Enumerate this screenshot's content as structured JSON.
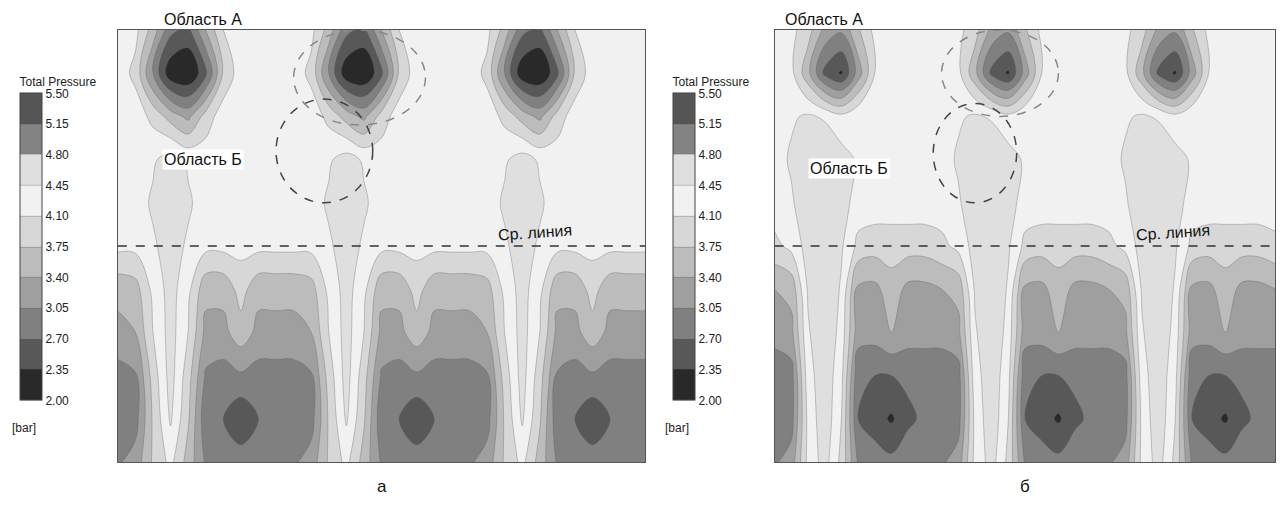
{
  "chart_data": [
    {
      "type": "contour",
      "title": "а",
      "tick_labels": false,
      "annotations": [
        "Область А",
        "Область Б",
        "Ср. линия"
      ],
      "xlim": [
        0,
        3
      ],
      "ylim": [
        0,
        1
      ],
      "x": [
        0,
        0.1,
        0.2,
        0.3,
        0.4,
        0.5,
        0.6,
        0.7,
        0.8,
        0.9,
        1.0,
        1.1,
        1.2,
        1.3,
        1.4,
        1.5,
        1.6,
        1.7,
        1.8,
        1.9,
        2.0,
        2.1,
        2.2,
        2.3,
        2.4,
        2.5,
        2.6,
        2.7,
        2.8,
        2.9,
        3.0
      ],
      "y": [
        0,
        0.1,
        0.2,
        0.3,
        0.4,
        0.5,
        0.6,
        0.7,
        0.8,
        0.9,
        1.0
      ],
      "z": [
        [
          3.0,
          3.2,
          3.8,
          4.2,
          3.6,
          3.0,
          3.0,
          2.9,
          3.0,
          3.0,
          3.0,
          3.2,
          3.8,
          4.2,
          3.6,
          3.0,
          3.0,
          2.9,
          3.0,
          3.0,
          3.0,
          3.2,
          3.8,
          4.2,
          3.6,
          3.0,
          3.0,
          2.9,
          3.0,
          3.0,
          3.0
        ],
        [
          2.8,
          2.9,
          3.8,
          4.5,
          3.8,
          2.8,
          2.7,
          2.4,
          2.7,
          2.8,
          2.8,
          2.9,
          3.8,
          4.5,
          3.8,
          2.8,
          2.7,
          2.4,
          2.7,
          2.8,
          2.8,
          2.9,
          3.8,
          4.5,
          3.8,
          2.8,
          2.7,
          2.4,
          2.7,
          2.8,
          2.8
        ],
        [
          2.9,
          3.0,
          3.9,
          4.6,
          3.9,
          3.0,
          2.9,
          3.0,
          2.9,
          2.9,
          2.9,
          3.0,
          3.9,
          4.6,
          3.9,
          3.0,
          2.9,
          3.0,
          2.9,
          2.9,
          2.9,
          3.0,
          3.9,
          4.6,
          3.9,
          3.0,
          2.9,
          3.0,
          2.9,
          2.9,
          2.9
        ],
        [
          3.3,
          3.4,
          4.1,
          4.6,
          4.1,
          3.3,
          3.3,
          3.6,
          3.3,
          3.3,
          3.3,
          3.4,
          4.1,
          4.6,
          4.1,
          3.3,
          3.3,
          3.6,
          3.3,
          3.3,
          3.3,
          3.4,
          4.1,
          4.6,
          4.1,
          3.3,
          3.3,
          3.6,
          3.3,
          3.3,
          3.3
        ],
        [
          3.5,
          3.6,
          4.2,
          4.6,
          4.2,
          3.5,
          3.5,
          3.9,
          3.5,
          3.5,
          3.5,
          3.6,
          4.2,
          4.6,
          4.2,
          3.5,
          3.5,
          3.9,
          3.5,
          3.5,
          3.5,
          3.6,
          4.2,
          4.6,
          4.2,
          3.5,
          3.5,
          3.9,
          3.5,
          3.5,
          3.5
        ],
        [
          4.2,
          4.2,
          4.4,
          4.6,
          4.4,
          4.2,
          4.2,
          4.2,
          4.2,
          4.2,
          4.2,
          4.2,
          4.4,
          4.6,
          4.4,
          4.2,
          4.2,
          4.2,
          4.2,
          4.2,
          4.2,
          4.2,
          4.4,
          4.6,
          4.4,
          4.2,
          4.2,
          4.2,
          4.2,
          4.2,
          4.2
        ],
        [
          4.3,
          4.3,
          4.5,
          4.7,
          4.5,
          4.3,
          4.3,
          4.3,
          4.3,
          4.3,
          4.3,
          4.3,
          4.5,
          4.7,
          4.5,
          4.3,
          4.3,
          4.3,
          4.3,
          4.3,
          4.3,
          4.3,
          4.5,
          4.7,
          4.5,
          4.3,
          4.3,
          4.3,
          4.3,
          4.3,
          4.3
        ],
        [
          4.3,
          4.3,
          4.4,
          4.6,
          4.4,
          4.3,
          4.3,
          4.3,
          4.3,
          4.3,
          4.3,
          4.3,
          4.4,
          4.6,
          4.4,
          4.3,
          4.3,
          4.3,
          4.3,
          4.3,
          4.3,
          4.3,
          4.4,
          4.6,
          4.4,
          4.3,
          4.3,
          4.3,
          4.3,
          4.3,
          4.3
        ],
        [
          4.3,
          4.3,
          4.0,
          3.6,
          3.3,
          3.9,
          4.3,
          4.3,
          4.3,
          4.3,
          4.3,
          4.3,
          4.0,
          3.6,
          3.3,
          3.9,
          4.3,
          4.3,
          4.3,
          4.3,
          4.3,
          4.3,
          4.0,
          3.6,
          3.3,
          3.9,
          4.3,
          4.3,
          4.3,
          4.3,
          4.3
        ],
        [
          4.3,
          4.0,
          3.0,
          2.1,
          2.0,
          2.6,
          3.8,
          4.3,
          4.3,
          4.3,
          4.3,
          4.0,
          3.0,
          2.1,
          2.0,
          2.6,
          3.8,
          4.3,
          4.3,
          4.3,
          4.3,
          4.0,
          3.0,
          2.1,
          2.0,
          2.6,
          3.8,
          4.3,
          4.3,
          4.3,
          4.3
        ],
        [
          4.3,
          4.2,
          3.6,
          2.8,
          2.6,
          3.4,
          4.1,
          4.3,
          4.3,
          4.3,
          4.3,
          4.2,
          3.6,
          2.8,
          2.6,
          3.4,
          4.1,
          4.3,
          4.3,
          4.3,
          4.3,
          4.2,
          3.6,
          2.8,
          2.6,
          3.4,
          4.1,
          4.3,
          4.3,
          4.3,
          4.3
        ]
      ],
      "colorbar": {
        "title": "Total Pressure",
        "unit": "[bar]",
        "range": [
          2,
          5.5
        ],
        "ticks": [
          {
            "value": 2,
            "label": "2.00"
          },
          {
            "value": 2.35,
            "label": "2.35"
          },
          {
            "value": 2.7,
            "label": "2.70"
          },
          {
            "value": 3.05,
            "label": "3.05"
          },
          {
            "value": 3.4,
            "label": "3.40"
          },
          {
            "value": 3.75,
            "label": "3.75"
          },
          {
            "value": 4.1,
            "label": "4.10"
          },
          {
            "value": 4.45,
            "label": "4.45"
          },
          {
            "value": 4.8,
            "label": "4.80"
          },
          {
            "value": 5.15,
            "label": "5.15"
          },
          {
            "value": 5.5,
            "label": "5.50"
          }
        ]
      }
    },
    {
      "type": "contour",
      "title": "б",
      "tick_labels": false,
      "annotations": [
        "Область А",
        "Область Б",
        "Ср. линия"
      ],
      "xlim": [
        0,
        3
      ],
      "ylim": [
        0,
        1
      ],
      "x": [
        0,
        0.1,
        0.2,
        0.3,
        0.4,
        0.5,
        0.6,
        0.7,
        0.8,
        0.9,
        1.0,
        1.1,
        1.2,
        1.3,
        1.4,
        1.5,
        1.6,
        1.7,
        1.8,
        1.9,
        2.0,
        2.1,
        2.2,
        2.3,
        2.4,
        2.5,
        2.6,
        2.7,
        2.8,
        2.9,
        3.0
      ],
      "y": [
        0,
        0.1,
        0.2,
        0.3,
        0.4,
        0.5,
        0.6,
        0.7,
        0.8,
        0.9,
        1.0
      ],
      "z": [
        [
          3.0,
          3.2,
          4.2,
          4.6,
          4.0,
          3.0,
          2.9,
          2.8,
          3.0,
          3.0,
          3.0,
          3.2,
          4.2,
          4.6,
          4.0,
          3.0,
          2.9,
          2.8,
          3.0,
          3.0,
          3.0,
          3.2,
          4.2,
          4.6,
          4.0,
          3.0,
          2.9,
          2.8,
          3.0,
          3.0,
          3.0
        ],
        [
          2.8,
          2.9,
          4.2,
          4.7,
          4.1,
          2.7,
          2.5,
          2.3,
          2.6,
          2.8,
          2.8,
          2.9,
          4.2,
          4.7,
          4.1,
          2.7,
          2.5,
          2.3,
          2.6,
          2.8,
          2.8,
          2.9,
          4.2,
          4.7,
          4.1,
          2.7,
          2.5,
          2.3,
          2.6,
          2.8,
          2.8
        ],
        [
          2.8,
          2.9,
          4.3,
          4.7,
          4.2,
          2.8,
          2.7,
          2.7,
          2.8,
          2.8,
          2.8,
          2.9,
          4.3,
          4.7,
          4.2,
          2.8,
          2.7,
          2.7,
          2.8,
          2.8,
          2.8,
          2.9,
          4.3,
          4.7,
          4.2,
          2.8,
          2.7,
          2.7,
          2.8,
          2.8,
          2.8
        ],
        [
          3.2,
          3.3,
          4.4,
          4.8,
          4.3,
          3.2,
          3.2,
          3.4,
          3.2,
          3.2,
          3.2,
          3.3,
          4.4,
          4.8,
          4.3,
          3.2,
          3.2,
          3.4,
          3.2,
          3.2,
          3.2,
          3.3,
          4.4,
          4.8,
          4.3,
          3.2,
          3.2,
          3.4,
          3.2,
          3.2,
          3.2
        ],
        [
          3.4,
          3.5,
          4.5,
          4.8,
          4.4,
          3.3,
          3.3,
          3.6,
          3.3,
          3.3,
          3.4,
          3.5,
          4.5,
          4.8,
          4.4,
          3.3,
          3.3,
          3.6,
          3.3,
          3.3,
          3.4,
          3.5,
          4.5,
          4.8,
          4.4,
          3.3,
          3.3,
          3.6,
          3.3,
          3.3,
          3.4
        ],
        [
          4.0,
          4.2,
          4.6,
          4.8,
          4.5,
          4.0,
          3.9,
          3.9,
          3.9,
          3.9,
          4.0,
          4.2,
          4.6,
          4.8,
          4.5,
          4.0,
          3.9,
          3.9,
          3.9,
          3.9,
          4.0,
          4.2,
          4.6,
          4.8,
          4.5,
          4.0,
          3.9,
          3.9,
          3.9,
          3.9,
          4.0
        ],
        [
          4.3,
          4.4,
          4.7,
          4.8,
          4.6,
          4.3,
          4.3,
          4.3,
          4.3,
          4.3,
          4.3,
          4.4,
          4.7,
          4.8,
          4.6,
          4.3,
          4.3,
          4.3,
          4.3,
          4.3,
          4.3,
          4.4,
          4.7,
          4.8,
          4.6,
          4.3,
          4.3,
          4.3,
          4.3,
          4.3,
          4.3
        ],
        [
          4.3,
          4.5,
          4.7,
          4.8,
          4.6,
          4.4,
          4.3,
          4.3,
          4.3,
          4.3,
          4.3,
          4.5,
          4.7,
          4.8,
          4.6,
          4.4,
          4.3,
          4.3,
          4.3,
          4.3,
          4.3,
          4.5,
          4.7,
          4.8,
          4.6,
          4.4,
          4.3,
          4.3,
          4.3,
          4.3,
          4.3
        ],
        [
          4.3,
          4.4,
          4.5,
          4.4,
          4.2,
          4.4,
          4.3,
          4.3,
          4.3,
          4.3,
          4.3,
          4.4,
          4.5,
          4.4,
          4.2,
          4.4,
          4.3,
          4.3,
          4.3,
          4.3,
          4.3,
          4.4,
          4.5,
          4.4,
          4.2,
          4.4,
          4.3,
          4.3,
          4.3,
          4.3,
          4.3
        ],
        [
          4.3,
          4.2,
          3.5,
          2.6,
          2.3,
          3.2,
          4.1,
          4.3,
          4.3,
          4.3,
          4.3,
          4.2,
          3.5,
          2.6,
          2.3,
          3.2,
          4.1,
          4.3,
          4.3,
          4.3,
          4.3,
          4.2,
          3.5,
          2.6,
          2.3,
          3.2,
          4.1,
          4.3,
          4.3,
          4.3,
          4.3
        ],
        [
          4.3,
          4.2,
          3.9,
          3.3,
          3.1,
          3.7,
          4.2,
          4.3,
          4.3,
          4.3,
          4.3,
          4.2,
          3.9,
          3.3,
          3.1,
          3.7,
          4.2,
          4.3,
          4.3,
          4.3,
          4.3,
          4.2,
          3.9,
          3.3,
          3.1,
          3.7,
          4.2,
          4.3,
          4.3,
          4.3,
          4.3
        ]
      ],
      "colorbar": {
        "title": "Total Pressure",
        "unit": "[bar]",
        "range": [
          2,
          5.5
        ],
        "ticks": [
          {
            "value": 2,
            "label": "2.00"
          },
          {
            "value": 2.35,
            "label": "2.35"
          },
          {
            "value": 2.7,
            "label": "2.70"
          },
          {
            "value": 3.05,
            "label": "3.05"
          },
          {
            "value": 3.4,
            "label": "3.40"
          },
          {
            "value": 3.75,
            "label": "3.75"
          },
          {
            "value": 4.1,
            "label": "4.10"
          },
          {
            "value": 4.45,
            "label": "4.45"
          },
          {
            "value": 4.8,
            "label": "4.80"
          },
          {
            "value": 5.15,
            "label": "5.15"
          },
          {
            "value": 5.5,
            "label": "5.50"
          }
        ]
      }
    }
  ]
}
